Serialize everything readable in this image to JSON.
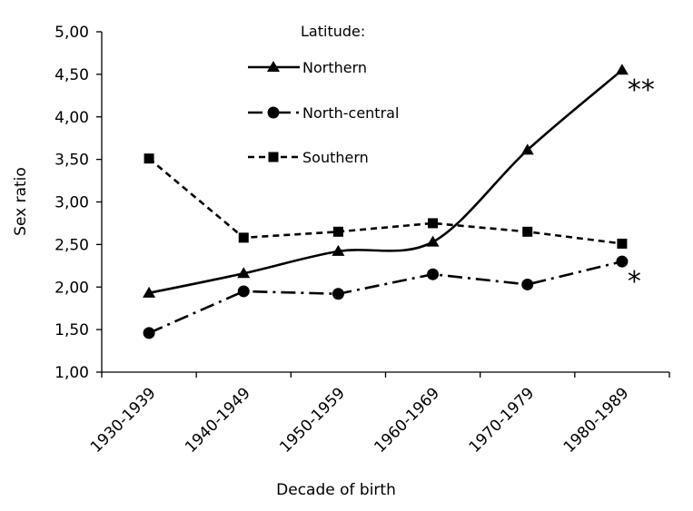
{
  "chart_data": {
    "type": "line",
    "title": "",
    "xlabel": "Decade of birth",
    "ylabel": "Sex ratio",
    "categories": [
      "1930-1939",
      "1940-1949",
      "1950-1959",
      "1960-1969",
      "1970-1979",
      "1980-1989"
    ],
    "ylim": [
      1.0,
      5.0
    ],
    "yticks": [
      "1,00",
      "1,50",
      "2,00",
      "2,50",
      "3,00",
      "3,50",
      "4,00",
      "4,50",
      "5,00"
    ],
    "grid": false,
    "legend": {
      "title": "Latitude:",
      "placement": "top-center"
    },
    "series": [
      {
        "name": "Northern",
        "values": [
          1.93,
          2.16,
          2.42,
          2.53,
          3.61,
          4.55
        ],
        "marker": "triangle",
        "line_style": "solid",
        "smooth": true,
        "annotation": "**"
      },
      {
        "name": "North-central",
        "values": [
          1.46,
          1.95,
          1.92,
          2.15,
          2.03,
          2.3
        ],
        "marker": "circle",
        "line_style": "dash-dot",
        "smooth": false,
        "annotation": "*"
      },
      {
        "name": "Southern",
        "values": [
          3.51,
          2.58,
          2.65,
          2.75,
          2.65,
          2.51
        ],
        "marker": "square",
        "line_style": "dashed",
        "smooth": false,
        "annotation": ""
      }
    ],
    "colors": {
      "line": "#000000",
      "background": "#ffffff"
    }
  }
}
